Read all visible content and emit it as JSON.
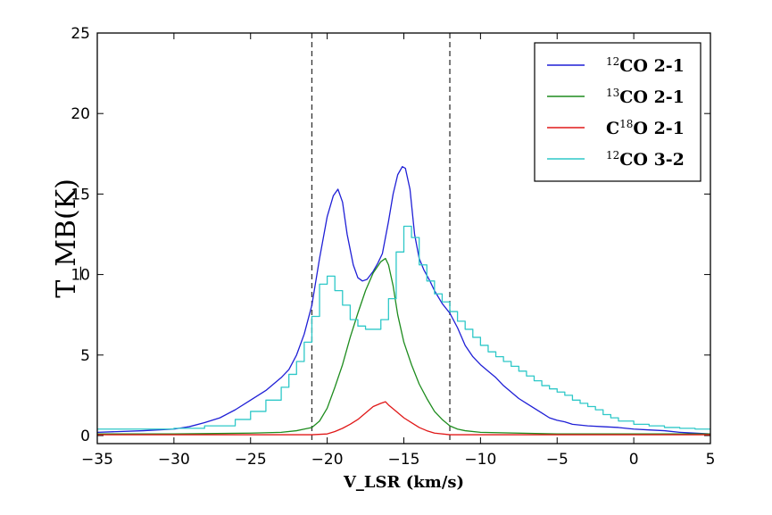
{
  "chart_data": {
    "type": "line",
    "title": "",
    "xlabel": "V_LSR (km/s)",
    "ylabel": "T_MB(K)",
    "xlim": [
      -35,
      5
    ],
    "ylim": [
      -0.5,
      25
    ],
    "xticks": [
      -35,
      -30,
      -25,
      -20,
      -15,
      -10,
      -5,
      0,
      5
    ],
    "yticks": [
      0,
      5,
      10,
      15,
      20,
      25
    ],
    "grid": false,
    "legend_position": "top-right",
    "vlines": [
      -21,
      -12
    ],
    "series": [
      {
        "name": "12CO 2-1",
        "legend_label": {
          "sup": "12",
          "text": "CO 2-1"
        },
        "color": "#1f1fd6",
        "style": "line",
        "x": [
          -35,
          -32,
          -30,
          -29,
          -28,
          -27,
          -26,
          -25,
          -24,
          -23,
          -22.5,
          -22,
          -21.5,
          -21,
          -20.5,
          -20,
          -19.6,
          -19.3,
          -19,
          -18.7,
          -18.3,
          -18,
          -17.7,
          -17.4,
          -17,
          -16.7,
          -16.4,
          -16,
          -15.7,
          -15.4,
          -15.1,
          -14.9,
          -14.6,
          -14.3,
          -14,
          -13.7,
          -13.3,
          -13,
          -12.5,
          -12,
          -11.5,
          -11,
          -10.5,
          -10,
          -9.5,
          -9,
          -8.5,
          -8,
          -7.5,
          -7,
          -6.5,
          -6,
          -5.5,
          -5,
          -4.5,
          -4,
          -3,
          -2,
          -1,
          0,
          1,
          2,
          3,
          5
        ],
        "y": [
          0.2,
          0.3,
          0.4,
          0.55,
          0.8,
          1.1,
          1.6,
          2.2,
          2.8,
          3.6,
          4.1,
          5.0,
          6.3,
          8.1,
          11.0,
          13.6,
          14.9,
          15.3,
          14.5,
          12.5,
          10.6,
          9.8,
          9.6,
          9.7,
          10.2,
          10.7,
          11.3,
          13.3,
          15.0,
          16.2,
          16.7,
          16.6,
          15.3,
          12.5,
          11.0,
          10.3,
          9.6,
          9.0,
          8.2,
          7.6,
          6.7,
          5.6,
          4.9,
          4.4,
          4.0,
          3.6,
          3.1,
          2.7,
          2.3,
          2.0,
          1.7,
          1.4,
          1.1,
          0.95,
          0.85,
          0.7,
          0.6,
          0.55,
          0.5,
          0.4,
          0.35,
          0.3,
          0.2,
          0.1
        ]
      },
      {
        "name": "13CO 2-1",
        "legend_label": {
          "sup": "13",
          "text": "CO 2-1"
        },
        "color": "#1e8c1e",
        "style": "line",
        "x": [
          -35,
          -30,
          -25,
          -23,
          -22,
          -21.5,
          -21,
          -20.5,
          -20,
          -19.5,
          -19,
          -18.5,
          -18,
          -17.5,
          -17,
          -16.5,
          -16.2,
          -16,
          -15.7,
          -15.4,
          -15,
          -14.5,
          -14,
          -13.5,
          -13,
          -12.5,
          -12,
          -11.5,
          -11,
          -10,
          -5,
          0,
          5
        ],
        "y": [
          0.1,
          0.1,
          0.15,
          0.2,
          0.3,
          0.4,
          0.5,
          0.9,
          1.7,
          3.0,
          4.4,
          6.1,
          7.6,
          9.0,
          10.1,
          10.8,
          11.0,
          10.6,
          9.3,
          7.5,
          5.8,
          4.4,
          3.2,
          2.3,
          1.5,
          1.0,
          0.6,
          0.4,
          0.3,
          0.2,
          0.1,
          0.1,
          0.1
        ]
      },
      {
        "name": "C18O 2-1",
        "legend_label": {
          "pre": "C",
          "sup": "18",
          "text": "O 2-1"
        },
        "color": "#e01818",
        "style": "line",
        "x": [
          -35,
          -25,
          -21,
          -20,
          -19.5,
          -19,
          -18.5,
          -18,
          -17.5,
          -17,
          -16.5,
          -16.2,
          -16,
          -15.5,
          -15,
          -14.5,
          -14,
          -13.5,
          -13,
          -12,
          -10,
          0,
          5
        ],
        "y": [
          0.05,
          0.05,
          0.05,
          0.1,
          0.25,
          0.45,
          0.7,
          1.0,
          1.4,
          1.8,
          2.0,
          2.1,
          1.9,
          1.5,
          1.1,
          0.8,
          0.5,
          0.3,
          0.15,
          0.05,
          0.05,
          0.05,
          0.05
        ]
      },
      {
        "name": "12CO 3-2",
        "legend_label": {
          "sup": "12",
          "text": "CO 3-2"
        },
        "color": "#2ec8c8",
        "style": "step",
        "x": [
          -35,
          -30,
          -28,
          -26,
          -25,
          -24,
          -23,
          -22.5,
          -22,
          -21.5,
          -21,
          -20.5,
          -20,
          -19.5,
          -19,
          -18.5,
          -18,
          -17.5,
          -17,
          -16.5,
          -16,
          -15.5,
          -15,
          -14.5,
          -14,
          -13.5,
          -13,
          -12.5,
          -12,
          -11.5,
          -11,
          -10.5,
          -10,
          -9.5,
          -9,
          -8.5,
          -8,
          -7.5,
          -7,
          -6.5,
          -6,
          -5.5,
          -5,
          -4.5,
          -4,
          -3.5,
          -3,
          -2.5,
          -2,
          -1.5,
          -1,
          0,
          1,
          2,
          3,
          4,
          5
        ],
        "y": [
          0.4,
          0.45,
          0.6,
          1.0,
          1.5,
          2.2,
          3.0,
          3.8,
          4.6,
          5.8,
          7.4,
          9.4,
          9.9,
          9.0,
          8.1,
          7.2,
          6.8,
          6.6,
          6.6,
          7.2,
          8.5,
          11.4,
          13.0,
          12.3,
          10.6,
          9.6,
          8.8,
          8.3,
          7.7,
          7.1,
          6.6,
          6.1,
          5.6,
          5.2,
          4.9,
          4.6,
          4.3,
          4.0,
          3.7,
          3.4,
          3.1,
          2.9,
          2.7,
          2.5,
          2.2,
          2.0,
          1.8,
          1.6,
          1.3,
          1.1,
          0.9,
          0.7,
          0.6,
          0.5,
          0.45,
          0.4,
          0.4
        ]
      }
    ]
  }
}
